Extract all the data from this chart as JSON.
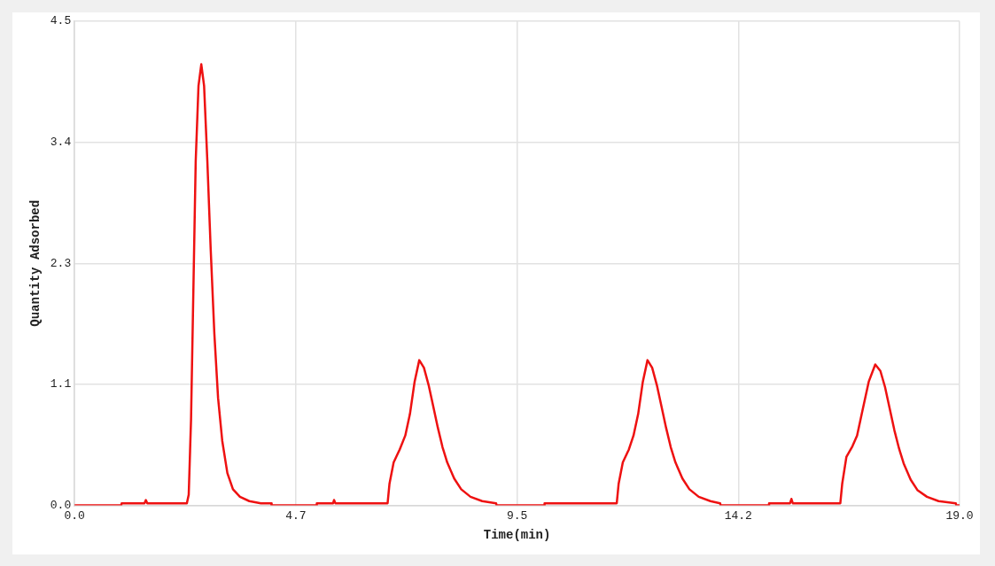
{
  "chart_data": {
    "type": "line",
    "xlabel": "Time(min)",
    "ylabel": "Quantity Adsorbed",
    "x": [
      0,
      1.0,
      1.01,
      1.5,
      1.53,
      1.56,
      2.41,
      2.45,
      2.5,
      2.55,
      2.6,
      2.66,
      2.72,
      2.78,
      2.85,
      2.92,
      3.0,
      3.08,
      3.17,
      3.28,
      3.4,
      3.55,
      3.75,
      4.0,
      4.22,
      4.23,
      5.19,
      5.2,
      5.55,
      5.57,
      5.6,
      6.72,
      6.76,
      6.85,
      6.98,
      7.1,
      7.2,
      7.3,
      7.4,
      7.5,
      7.6,
      7.7,
      7.8,
      7.9,
      8.0,
      8.15,
      8.3,
      8.5,
      8.75,
      9.05,
      9.06,
      10.08,
      10.09,
      11.64,
      11.68,
      11.77,
      11.9,
      12.0,
      12.1,
      12.2,
      12.3,
      12.4,
      12.5,
      12.6,
      12.7,
      12.8,
      12.9,
      13.05,
      13.2,
      13.4,
      13.65,
      13.86,
      13.87,
      14.9,
      14.91,
      15.36,
      15.39,
      15.42,
      16.44,
      16.48,
      16.57,
      16.7,
      16.8,
      16.9,
      17.05,
      17.19,
      17.3,
      17.4,
      17.5,
      17.6,
      17.7,
      17.8,
      17.95,
      18.1,
      18.3,
      18.55,
      18.92,
      18.93,
      19.0
    ],
    "series": [
      {
        "color": "#ee1111",
        "values": [
          0,
          0,
          0.02,
          0.02,
          0.05,
          0.02,
          0.02,
          0.1,
          0.8,
          2.0,
          3.2,
          3.9,
          4.1,
          3.9,
          3.2,
          2.4,
          1.6,
          1.0,
          0.6,
          0.3,
          0.15,
          0.08,
          0.04,
          0.02,
          0.02,
          0,
          0,
          0.02,
          0.02,
          0.05,
          0.02,
          0.02,
          0.2,
          0.4,
          0.52,
          0.65,
          0.85,
          1.15,
          1.35,
          1.28,
          1.12,
          0.92,
          0.72,
          0.54,
          0.4,
          0.25,
          0.15,
          0.08,
          0.04,
          0.02,
          0,
          0,
          0.02,
          0.02,
          0.2,
          0.4,
          0.52,
          0.65,
          0.85,
          1.15,
          1.35,
          1.28,
          1.12,
          0.92,
          0.72,
          0.54,
          0.4,
          0.25,
          0.15,
          0.08,
          0.04,
          0.02,
          0,
          0,
          0.02,
          0.02,
          0.06,
          0.02,
          0.02,
          0.2,
          0.45,
          0.55,
          0.65,
          0.85,
          1.15,
          1.31,
          1.25,
          1.1,
          0.9,
          0.7,
          0.53,
          0.39,
          0.24,
          0.14,
          0.08,
          0.04,
          0.02,
          0,
          0
        ]
      }
    ],
    "xlim": [
      0,
      19
    ],
    "xticks": [
      {
        "value": 0,
        "label": "0.0"
      },
      {
        "value": 4.75,
        "label": "4.7"
      },
      {
        "value": 9.5,
        "label": "9.5"
      },
      {
        "value": 14.25,
        "label": "14.2"
      },
      {
        "value": 19,
        "label": "19.0"
      }
    ],
    "ylim": [
      0,
      4.5
    ],
    "yticks": [
      {
        "value": 0,
        "label": "0.0"
      },
      {
        "value": 1.125,
        "label": "1.1"
      },
      {
        "value": 2.25,
        "label": "2.3"
      },
      {
        "value": 3.375,
        "label": "3.4"
      },
      {
        "value": 4.5,
        "label": "4.5"
      }
    ],
    "grid": true,
    "marker": "none",
    "line_style": "solid"
  }
}
